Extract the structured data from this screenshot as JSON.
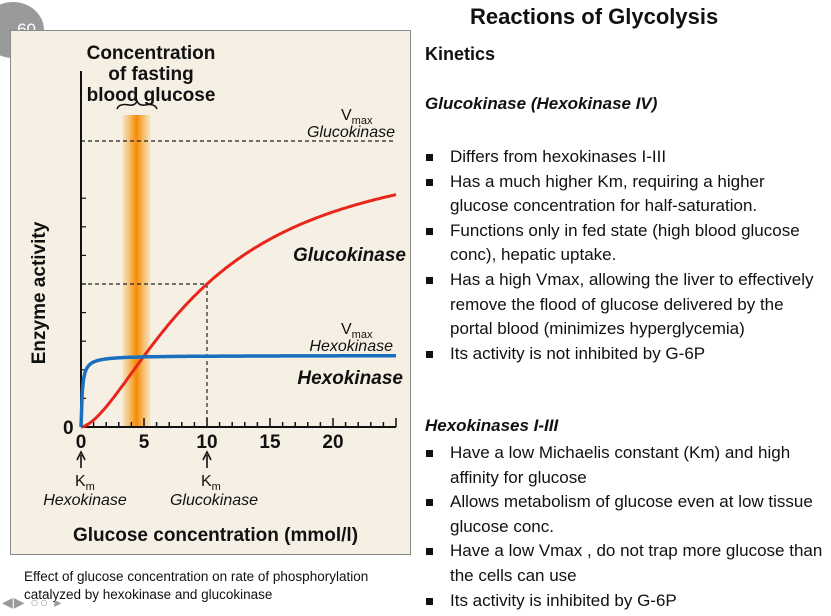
{
  "slide": {
    "number": "60"
  },
  "title": "Reactions of Glycolysis",
  "kinetics_heading": "Kinetics",
  "glucokinase": {
    "heading": "Glucokinase (Hexokinase IV)",
    "bullets": [
      "Differs from hexokinases I-III",
      "Has a much higher Km, requiring a higher glucose concentration for half-saturation.",
      "Functions only in fed state (high blood glucose conc), hepatic uptake.",
      "Has a high Vmax, allowing the liver to effectively remove the flood of glucose delivered by the portal blood (minimizes hyperglycemia)",
      "Its activity is not inhibited by G-6P"
    ]
  },
  "hexokinases": {
    "heading": "Hexokinases I-III",
    "bullets": [
      "Have a low Michaelis constant (Km) and high affinity for glucose",
      "Allows metabolism of glucose even at low tissue glucose conc.",
      "Have a low Vmax , do not trap more glucose than the cells can use",
      "Its activity is inhibited by G-6P"
    ]
  },
  "caption": {
    "line1": "Effect of glucose concentration on rate of phosphorylation",
    "line2": "catalyzed by hexokinase and glucokinase"
  },
  "figure": {
    "fasting_label": [
      "Concentration",
      "of fasting",
      "blood glucose"
    ],
    "vmax_gk": {
      "v": "V",
      "sub": "max",
      "name": "Glucokinase"
    },
    "vmax_hk": {
      "v": "V",
      "sub": "max",
      "name": "Hexokinase"
    },
    "km_hk": {
      "k": "K",
      "sub": "m",
      "name": "Hexokinase"
    },
    "km_gk": {
      "k": "K",
      "sub": "m",
      "name": "Glucokinase"
    },
    "gk_curve_label": "Glucokinase",
    "hk_curve_label": "Hexokinase",
    "origin_label": "0"
  },
  "chart_data": {
    "type": "line",
    "xlabel": "Glucose concentration (mmol/l)",
    "ylabel": "Enzyme activity",
    "xlim": [
      0,
      25
    ],
    "ylim": [
      0,
      1
    ],
    "x_ticks": [
      0,
      5,
      10,
      15,
      20
    ],
    "fasting_band": [
      3.3,
      5.5
    ],
    "grid": false,
    "series": [
      {
        "name": "Glucokinase",
        "color": "#e8261c",
        "vmax": 1.0,
        "km": 10,
        "hill": 1.6,
        "x": [
          0,
          2,
          4,
          5,
          6,
          8,
          10,
          12,
          14,
          16,
          18,
          20,
          22,
          24,
          25
        ],
        "y": [
          0,
          0.07,
          0.19,
          0.25,
          0.31,
          0.42,
          0.5,
          0.57,
          0.63,
          0.68,
          0.72,
          0.75,
          0.78,
          0.8,
          0.81
        ]
      },
      {
        "name": "Hexokinase",
        "color": "#1a6fbf",
        "vmax": 0.25,
        "km": 0.1,
        "x": [
          0,
          0.1,
          0.5,
          1,
          2,
          5,
          10,
          15,
          20,
          25
        ],
        "y": [
          0,
          0.12,
          0.21,
          0.23,
          0.24,
          0.246,
          0.248,
          0.249,
          0.249,
          0.25
        ]
      }
    ]
  }
}
